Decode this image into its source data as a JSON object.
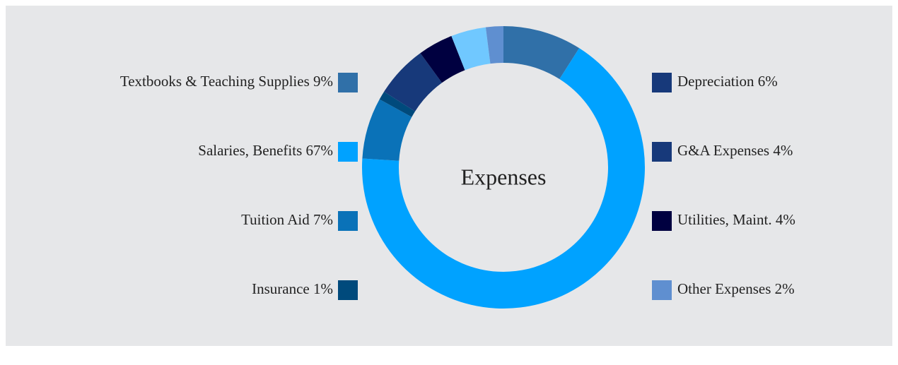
{
  "chart_data": {
    "type": "donut",
    "title": "Expenses",
    "categories": [
      "Textbooks & Teaching Supplies",
      "Salaries, Benefits",
      "Tuition Aid",
      "Insurance",
      "Depreciation",
      "Utilities, Maint.",
      "G&A Expenses",
      "Other Expenses"
    ],
    "values": [
      9,
      67,
      7,
      1,
      6,
      4,
      4,
      2
    ],
    "value_labels": [
      "9%",
      "67%",
      "7%",
      "1%",
      "6%",
      "4%",
      "4%",
      "2%"
    ],
    "colors": [
      "#3070a8",
      "#00a2ff",
      "#0a72b8",
      "#004a7c",
      "#17397a",
      "#000040",
      "#70c8ff",
      "#5f8fd0"
    ],
    "legend_colors": [
      "#3070a8",
      "#00a2ff",
      "#0a72b8",
      "#004a7c",
      "#17397a",
      "#000040",
      "#17397a",
      "#5f8fd0"
    ]
  }
}
